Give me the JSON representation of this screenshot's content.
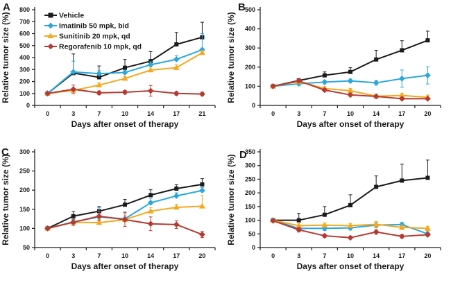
{
  "figure": {
    "background": "#ffffff",
    "x_axis_label": "Days after onset of therapy",
    "y_axis_label": "Relative tumor size (%)"
  },
  "legend": {
    "location": "panel A top-left",
    "entries": [
      {
        "label": "Vehicle",
        "color": "#1b1b1b",
        "marker": "square"
      },
      {
        "label": "Imatinib 50 mpk, bid",
        "color": "#2aa7dd",
        "marker": "diamond"
      },
      {
        "label": "Sunitinib 20 mpk, qd",
        "color": "#f5a81e",
        "marker": "triangle"
      },
      {
        "label": "Regorafenib 10 mpk, qd",
        "color": "#b53b32",
        "marker": "diamond"
      }
    ]
  },
  "chart_data": [
    {
      "panel": "A",
      "type": "line",
      "x_categories": [
        0,
        3,
        7,
        10,
        14,
        17,
        21
      ],
      "xlabel": "Days after onset of therapy",
      "ylabel": "Relative tumor size (%)",
      "ylim": [
        0,
        800
      ],
      "ytick_step": 100,
      "grid": false,
      "show_legend": true,
      "series": [
        {
          "name": "Vehicle",
          "color": "#1b1b1b",
          "marker": "square",
          "err_mode": "up",
          "values": [
            100,
            270,
            235,
            315,
            370,
            510,
            570
          ],
          "err": [
            0,
            160,
            95,
            70,
            80,
            100,
            125
          ]
        },
        {
          "name": "Imatinib 50 mpk, bid",
          "color": "#2aa7dd",
          "marker": "diamond",
          "err_mode": "up",
          "values": [
            100,
            280,
            265,
            275,
            340,
            385,
            465
          ],
          "err": [
            0,
            90,
            25,
            20,
            25,
            30,
            135
          ]
        },
        {
          "name": "Sunitinib 20 mpk, qd",
          "color": "#f5a81e",
          "marker": "triangle",
          "err_mode": "up",
          "values": [
            100,
            125,
            170,
            225,
            295,
            315,
            440
          ],
          "err": [
            0,
            15,
            18,
            15,
            25,
            25,
            20
          ]
        },
        {
          "name": "Regorafenib 10 mpk, qd",
          "color": "#b53b32",
          "marker": "diamond",
          "err_mode": "both",
          "values": [
            100,
            135,
            105,
            110,
            122,
            100,
            95
          ],
          "err": [
            0,
            35,
            15,
            15,
            45,
            15,
            15
          ]
        }
      ]
    },
    {
      "panel": "B",
      "type": "line",
      "x_categories": [
        0,
        3,
        7,
        10,
        14,
        17,
        20
      ],
      "xlabel": "Days after onset of therapy",
      "ylabel": "Relative tumor size (%)",
      "ylim": [
        0,
        500
      ],
      "ytick_step": 100,
      "grid": false,
      "show_legend": false,
      "series": [
        {
          "name": "Vehicle",
          "color": "#1b1b1b",
          "marker": "square",
          "err_mode": "up",
          "values": [
            100,
            130,
            157,
            175,
            240,
            288,
            340
          ],
          "err": [
            0,
            10,
            18,
            22,
            48,
            50,
            48
          ]
        },
        {
          "name": "Imatinib 50 mpk, bid",
          "color": "#2aa7dd",
          "marker": "diamond",
          "err_mode": "both",
          "values": [
            100,
            113,
            122,
            128,
            118,
            140,
            157
          ],
          "err": [
            0,
            8,
            10,
            10,
            12,
            45,
            45
          ]
        },
        {
          "name": "Sunitinib 20 mpk, qd",
          "color": "#f5a81e",
          "marker": "triangle",
          "err_mode": "both",
          "values": [
            100,
            125,
            88,
            77,
            48,
            52,
            42
          ],
          "err": [
            0,
            12,
            10,
            12,
            10,
            12,
            12
          ]
        },
        {
          "name": "Regorafenib 10 mpk, qd",
          "color": "#b53b32",
          "marker": "diamond",
          "err_mode": "both",
          "values": [
            100,
            128,
            80,
            55,
            47,
            35,
            35
          ],
          "err": [
            0,
            8,
            8,
            8,
            8,
            6,
            6
          ]
        }
      ]
    },
    {
      "panel": "C",
      "type": "line",
      "x_categories": [
        0,
        3,
        7,
        10,
        14,
        17,
        20
      ],
      "xlabel": "Days after onset of therapy",
      "ylabel": "Relative tumor size (%)",
      "ylim": [
        50,
        300
      ],
      "ytick_step": 50,
      "grid": false,
      "show_legend": false,
      "series": [
        {
          "name": "Vehicle",
          "color": "#1b1b1b",
          "marker": "square",
          "err_mode": "up",
          "values": [
            100,
            132,
            145,
            162,
            187,
            204,
            215
          ],
          "err": [
            0,
            12,
            12,
            14,
            14,
            10,
            15
          ]
        },
        {
          "name": "Imatinib 50 mpk, bid",
          "color": "#2aa7dd",
          "marker": "diamond",
          "err_mode": "up",
          "values": [
            100,
            117,
            130,
            125,
            167,
            185,
            199
          ],
          "err": [
            0,
            8,
            25,
            18,
            12,
            8,
            8
          ]
        },
        {
          "name": "Sunitinib 20 mpk, qd",
          "color": "#f5a81e",
          "marker": "triangle",
          "err_mode": "up",
          "values": [
            100,
            116,
            115,
            123,
            145,
            155,
            158
          ],
          "err": [
            0,
            8,
            8,
            10,
            10,
            8,
            28
          ]
        },
        {
          "name": "Regorafenib 10 mpk, qd",
          "color": "#b53b32",
          "marker": "diamond",
          "err_mode": "both",
          "values": [
            100,
            116,
            132,
            123,
            112,
            110,
            84
          ],
          "err": [
            0,
            8,
            12,
            18,
            18,
            10,
            8
          ]
        }
      ]
    },
    {
      "panel": "D",
      "type": "line",
      "x_categories": [
        0,
        3,
        7,
        10,
        14,
        17,
        20
      ],
      "xlabel": "Days after onset of therapy",
      "ylabel": "Relative tumor size (%)",
      "ylim": [
        0,
        350
      ],
      "ytick_step": 50,
      "grid": false,
      "show_legend": false,
      "series": [
        {
          "name": "Vehicle",
          "color": "#1b1b1b",
          "marker": "square",
          "err_mode": "up",
          "values": [
            100,
            100,
            120,
            155,
            222,
            245,
            255
          ],
          "err": [
            0,
            25,
            30,
            38,
            40,
            60,
            65
          ]
        },
        {
          "name": "Imatinib 50 mpk, bid",
          "color": "#2aa7dd",
          "marker": "diamond",
          "err_mode": "both",
          "values": [
            100,
            70,
            70,
            72,
            82,
            84,
            50
          ],
          "err": [
            0,
            8,
            8,
            8,
            10,
            8,
            8
          ]
        },
        {
          "name": "Sunitinib 20 mpk, qd",
          "color": "#f5a81e",
          "marker": "triangle",
          "err_mode": "both",
          "values": [
            100,
            80,
            82,
            80,
            85,
            74,
            70
          ],
          "err": [
            0,
            10,
            8,
            8,
            10,
            8,
            8
          ]
        },
        {
          "name": "Regorafenib 10 mpk, qd",
          "color": "#b53b32",
          "marker": "diamond",
          "err_mode": "both",
          "values": [
            98,
            65,
            43,
            36,
            57,
            41,
            47
          ],
          "err": [
            0,
            8,
            6,
            5,
            8,
            6,
            6
          ]
        }
      ]
    }
  ]
}
